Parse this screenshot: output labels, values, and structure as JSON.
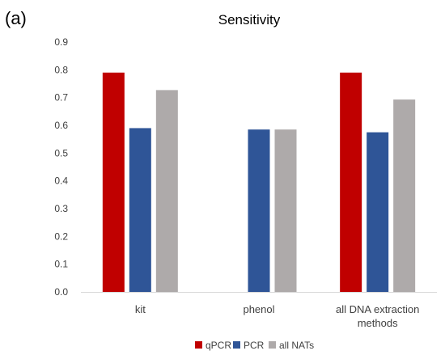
{
  "panel_label": "(a)",
  "chart_data": {
    "type": "bar",
    "title": "Sensitivity",
    "categories": [
      [
        "kit"
      ],
      [
        "phenol"
      ],
      [
        "all DNA extraction",
        "methods"
      ]
    ],
    "series": [
      {
        "name": "qPCR",
        "color": "#c00000",
        "values": [
          0.79,
          null,
          0.79
        ]
      },
      {
        "name": "PCR",
        "color": "#2f5597",
        "values": [
          0.59,
          0.585,
          0.575
        ]
      },
      {
        "name": "all NATs",
        "color": "#aeaaaa",
        "values": [
          0.727,
          0.585,
          0.693
        ]
      }
    ],
    "ylim": [
      0,
      0.9
    ],
    "yticks": [
      "0.0",
      "0.1",
      "0.2",
      "0.3",
      "0.4",
      "0.5",
      "0.6",
      "0.7",
      "0.8",
      "0.9"
    ],
    "grid": false,
    "legend_position": "bottom"
  }
}
